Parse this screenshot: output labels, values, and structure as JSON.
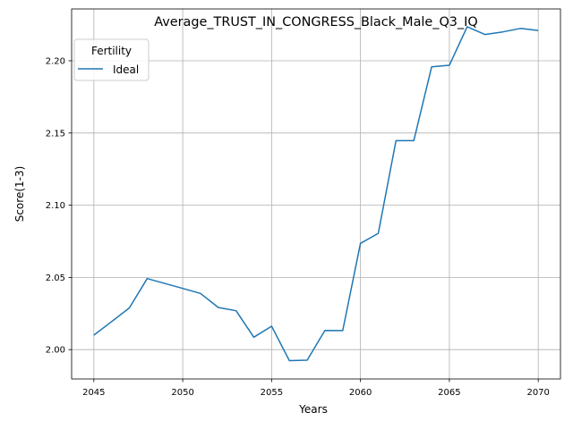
{
  "chart_data": {
    "type": "line",
    "title": "Average_TRUST_IN_CONGRESS_Black_Male_Q3_IQ",
    "xlabel": "Years",
    "ylabel": "Score(1-3)",
    "xlim": [
      2043.75,
      2071.25
    ],
    "ylim": [
      1.9797,
      2.2359
    ],
    "xticks": [
      2045,
      2050,
      2055,
      2060,
      2065,
      2070
    ],
    "yticks": [
      2.0,
      2.05,
      2.1,
      2.15,
      2.2
    ],
    "xtick_labels": [
      "2045",
      "2050",
      "2055",
      "2060",
      "2065",
      "2070"
    ],
    "ytick_labels": [
      "2.00",
      "2.05",
      "2.10",
      "2.15",
      "2.20"
    ],
    "grid": true,
    "legend": {
      "title": "Fertility",
      "placement": "top-left"
    },
    "series": [
      {
        "name": "Ideal",
        "color": "#1f77b4",
        "x": [
          2045,
          2046,
          2047,
          2048,
          2049,
          2050,
          2051,
          2052,
          2053,
          2054,
          2055,
          2056,
          2057,
          2058,
          2059,
          2060,
          2061,
          2062,
          2063,
          2064,
          2065,
          2066,
          2067,
          2068,
          2069,
          2070
        ],
        "y": [
          2.01,
          2.0194,
          2.0289,
          2.0492,
          2.0458,
          2.0424,
          2.0389,
          2.0292,
          2.0269,
          2.0086,
          2.0162,
          1.9924,
          1.9927,
          2.0133,
          2.0132,
          2.0736,
          2.0805,
          2.1447,
          2.1447,
          2.1958,
          2.1969,
          2.2236,
          2.2182,
          2.22,
          2.2224,
          2.221
        ]
      }
    ]
  }
}
